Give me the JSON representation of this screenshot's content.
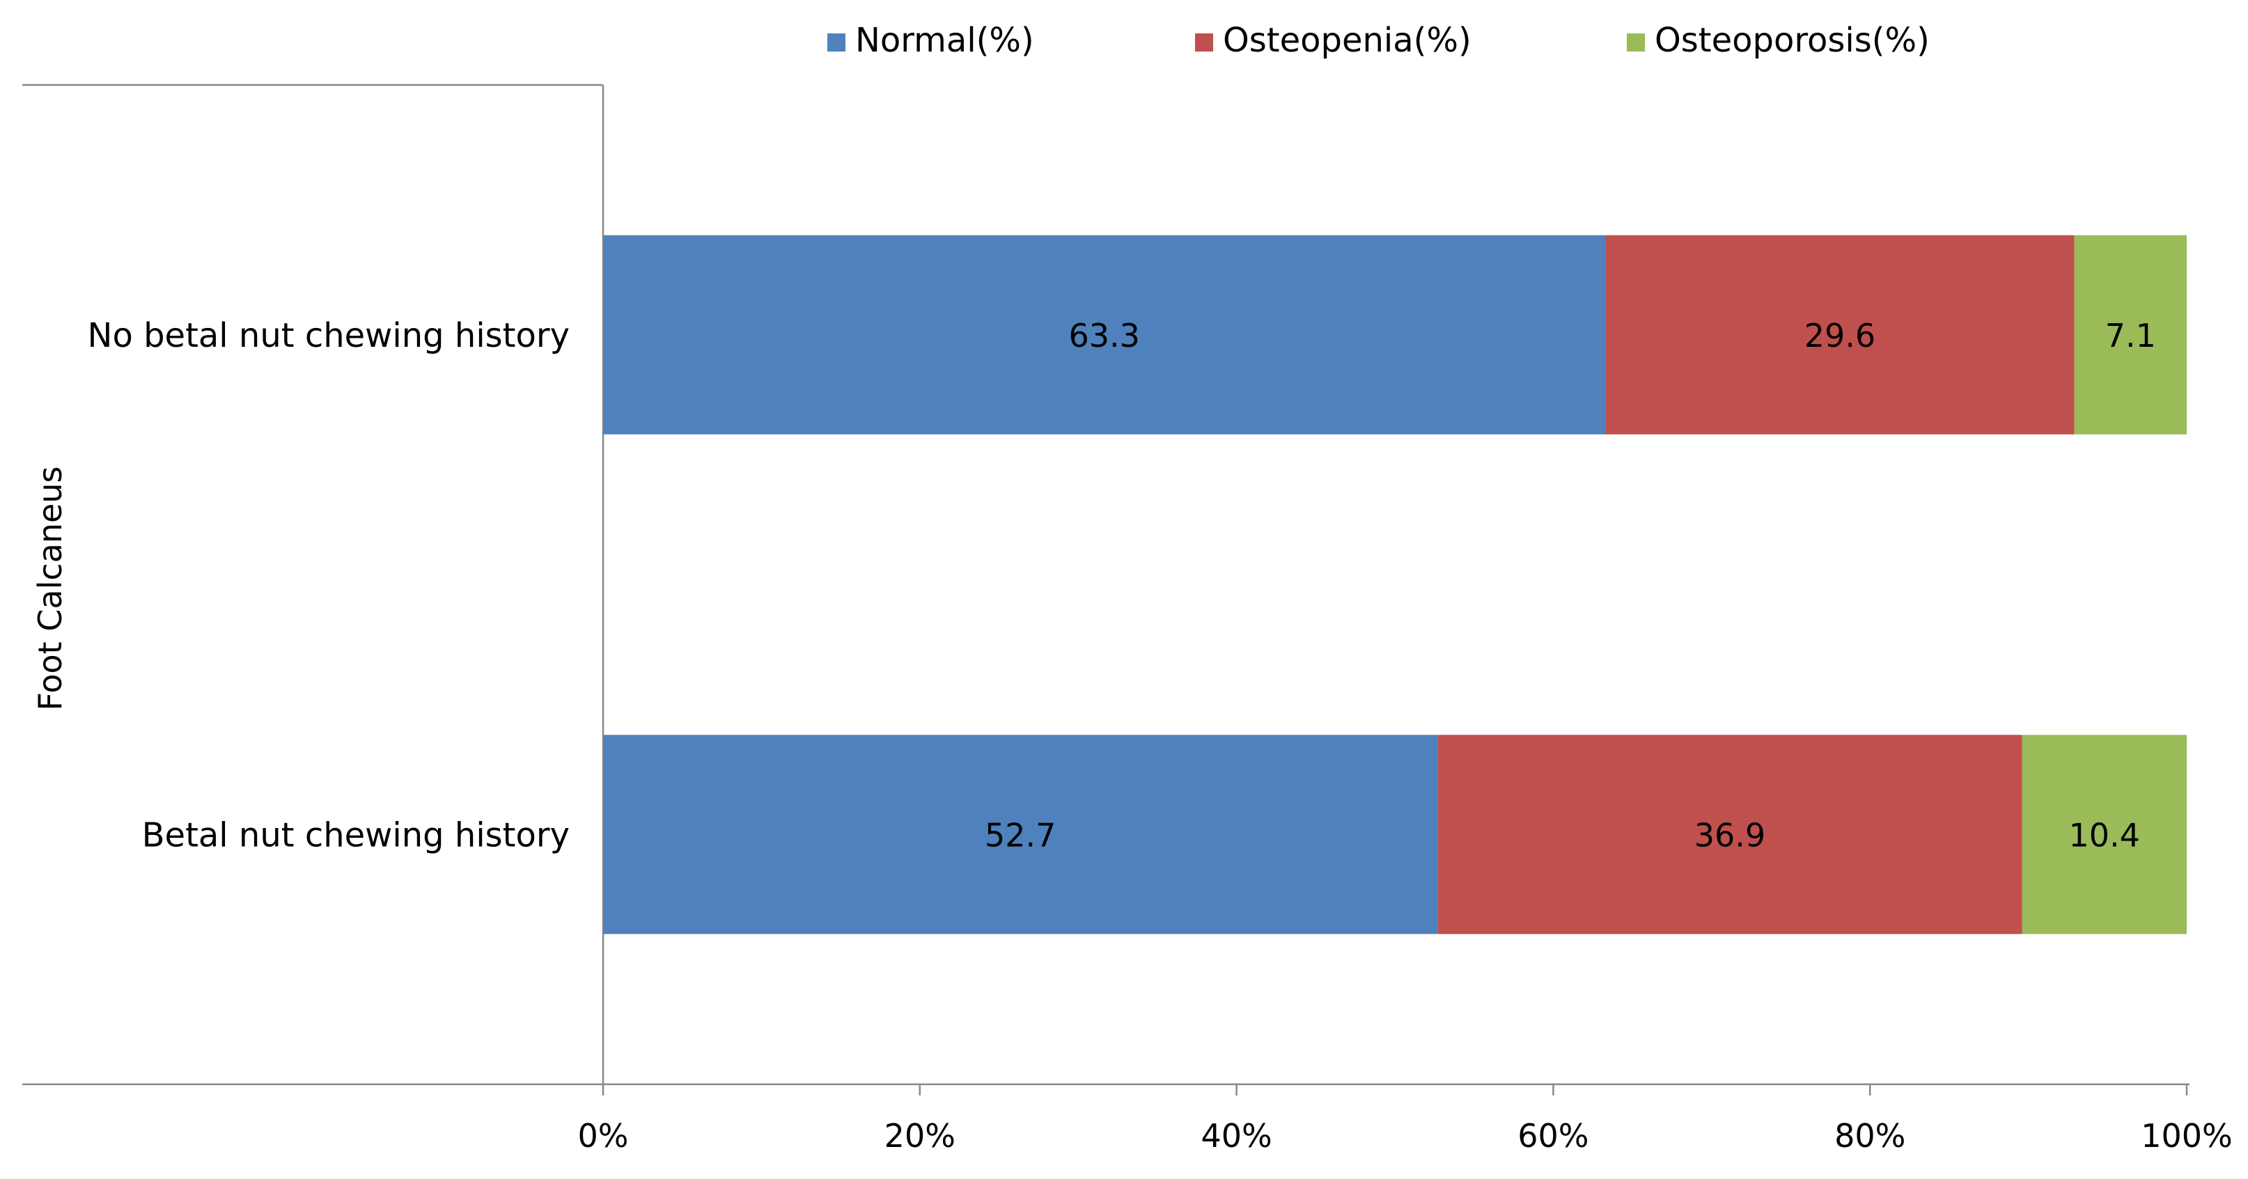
{
  "chart_data": {
    "type": "bar",
    "orientation": "horizontal",
    "stacked": "percent",
    "title": "",
    "categories": [
      "No betal nut chewing history",
      "Betal nut chewing history"
    ],
    "series": [
      {
        "name": "Normal(%)",
        "color": "#4F81BD",
        "values": [
          63.3,
          52.7
        ]
      },
      {
        "name": "Osteopenia(%)",
        "color": "#C0504D",
        "values": [
          29.6,
          36.9
        ]
      },
      {
        "name": "Osteoporosis(%)",
        "color": "#9BBB59",
        "values": [
          7.1,
          10.4
        ]
      }
    ],
    "xlabel": "",
    "ylabel": "Foot Calcaneus",
    "xlim": [
      0,
      100
    ],
    "xticks": [
      "0%",
      "20%",
      "40%",
      "60%",
      "80%",
      "100%"
    ],
    "grid": false,
    "legend": "top-center"
  }
}
